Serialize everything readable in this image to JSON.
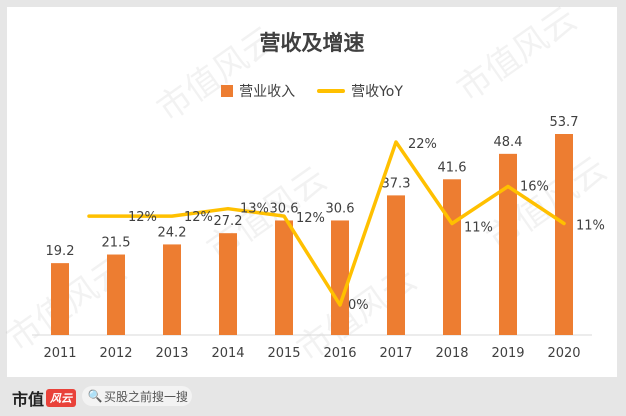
{
  "chart_data": {
    "type": "bar",
    "title": "营收及增速",
    "categories": [
      "2011",
      "2012",
      "2013",
      "2014",
      "2015",
      "2016",
      "2017",
      "2018",
      "2019",
      "2020"
    ],
    "series": [
      {
        "name": "营业收入",
        "kind": "bar",
        "color": "#ed7d31",
        "values": [
          19.2,
          21.5,
          24.2,
          27.2,
          30.6,
          30.6,
          37.3,
          41.6,
          48.4,
          53.7
        ],
        "labels": [
          "19.2",
          "21.5",
          "24.2",
          "27.2",
          "30.6",
          "30.6",
          "37.3",
          "41.6",
          "48.4",
          "53.7"
        ]
      },
      {
        "name": "营收YoY",
        "kind": "line",
        "color": "#ffc000",
        "values": [
          null,
          12,
          12,
          13,
          12,
          0,
          22,
          11,
          16,
          11
        ],
        "labels": [
          "",
          "12%",
          "12%",
          "13%",
          "12%",
          "0%",
          "22%",
          "11%",
          "16%",
          "11%"
        ]
      }
    ],
    "ylim_bar": [
      0,
      60
    ],
    "ylim_line": [
      -10,
      30
    ],
    "grid": false,
    "legend_position": "top-center"
  },
  "footer": {
    "brand": "市值",
    "brand_badge": "风云",
    "search_text": "买股之前搜一搜"
  },
  "watermark": "市值风云"
}
